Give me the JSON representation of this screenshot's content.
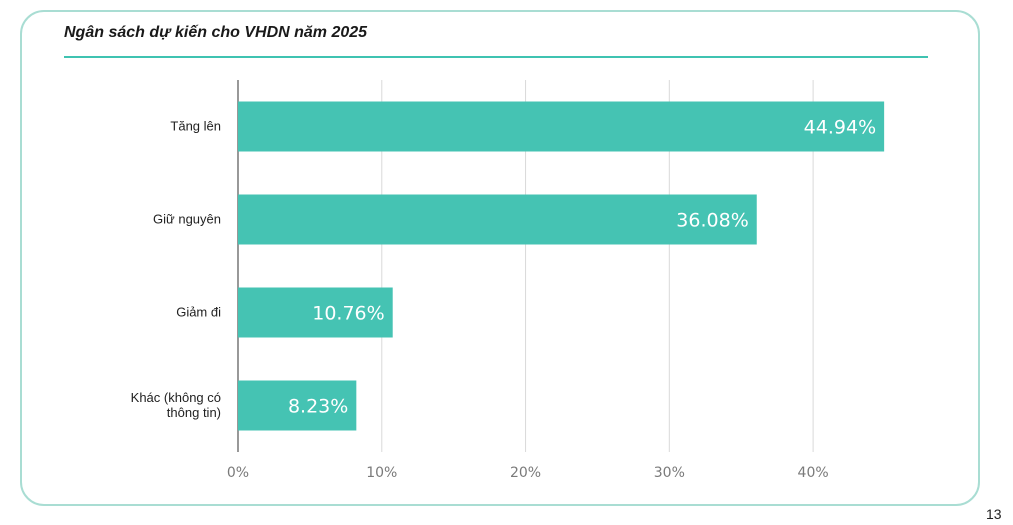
{
  "page_number": "13",
  "colors": {
    "bar": "#45c3b3",
    "grid": "#d9d9d9",
    "axis": "#555555",
    "title_rule": "#3fc3b1",
    "card_border": "#a9ddd3"
  },
  "chart_data": {
    "type": "bar",
    "orientation": "horizontal",
    "title": "Ngân sách dự kiến cho VHDN năm 2025",
    "categories": [
      [
        "Tăng lên"
      ],
      [
        "Giữ nguyên"
      ],
      [
        "Giảm đi"
      ],
      [
        "Khác (không có",
        "thông tin)"
      ]
    ],
    "values": [
      44.94,
      36.08,
      10.76,
      8.23
    ],
    "data_labels": [
      "44.94%",
      "36.08%",
      "10.76%",
      "8.23%"
    ],
    "xlim": [
      0,
      45
    ],
    "xticks": [
      0,
      10,
      20,
      30,
      40
    ],
    "xtick_labels": [
      "0%",
      "10%",
      "20%",
      "30%",
      "40%"
    ],
    "grid": true,
    "legend": "none"
  }
}
